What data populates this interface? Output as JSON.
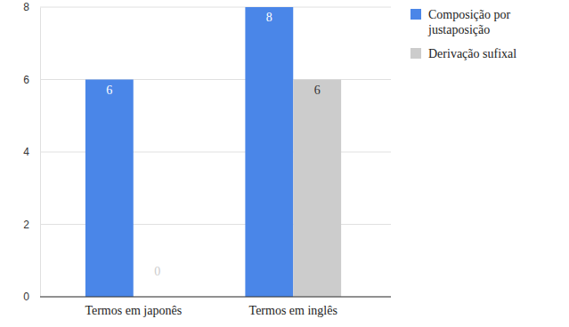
{
  "chart_data": {
    "type": "bar",
    "categories": [
      "Termos em japonês",
      "Termos em inglês"
    ],
    "series": [
      {
        "name": "Composição por justaposição",
        "color": "#4a86e8",
        "values": [
          6,
          8
        ]
      },
      {
        "name": "Derivação sufixal",
        "color": "#cccccc",
        "values": [
          0,
          6
        ]
      }
    ],
    "ylim": [
      0,
      8
    ],
    "yticks": [
      0,
      2,
      4,
      6,
      8
    ],
    "grid": true,
    "legend": "right",
    "data_labels": true
  }
}
